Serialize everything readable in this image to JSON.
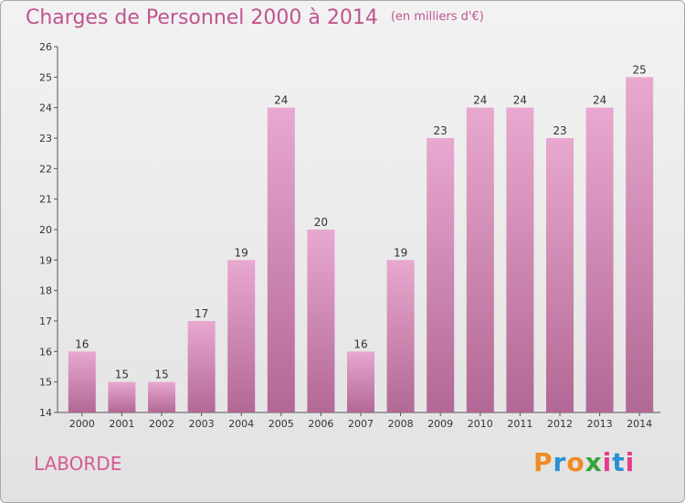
{
  "chart_data": {
    "type": "bar",
    "title": "Charges de Personnel 2000 à 2014",
    "subtitle": "(en milliers d'€)",
    "categories": [
      "2000",
      "2001",
      "2002",
      "2003",
      "2004",
      "2005",
      "2006",
      "2007",
      "2008",
      "2009",
      "2010",
      "2011",
      "2012",
      "2013",
      "2014"
    ],
    "values": [
      16,
      15,
      15,
      17,
      19,
      24,
      20,
      16,
      19,
      23,
      24,
      24,
      23,
      24,
      25
    ],
    "ylim": [
      14,
      26
    ],
    "yticks": [
      14,
      15,
      16,
      17,
      18,
      19,
      20,
      21,
      22,
      23,
      24,
      25,
      26
    ],
    "grid": false,
    "bar_color_top": "#e8a8d0",
    "bar_color_bottom": "#b26894"
  },
  "footer": {
    "commune": "LABORDE",
    "brand": "Proxiti",
    "brand_colors": [
      "#f08a24",
      "#2a8fd0",
      "#f08a24",
      "#3aa33a",
      "#e63c8c",
      "#2a8fd0",
      "#e63c8c"
    ]
  }
}
